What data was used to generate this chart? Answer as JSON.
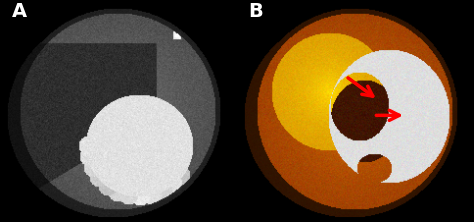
{
  "fig_width": 4.74,
  "fig_height": 2.22,
  "dpi": 100,
  "label_A": "A",
  "label_B": "B",
  "label_color": "white",
  "label_fontsize": 14,
  "background_color": "black"
}
